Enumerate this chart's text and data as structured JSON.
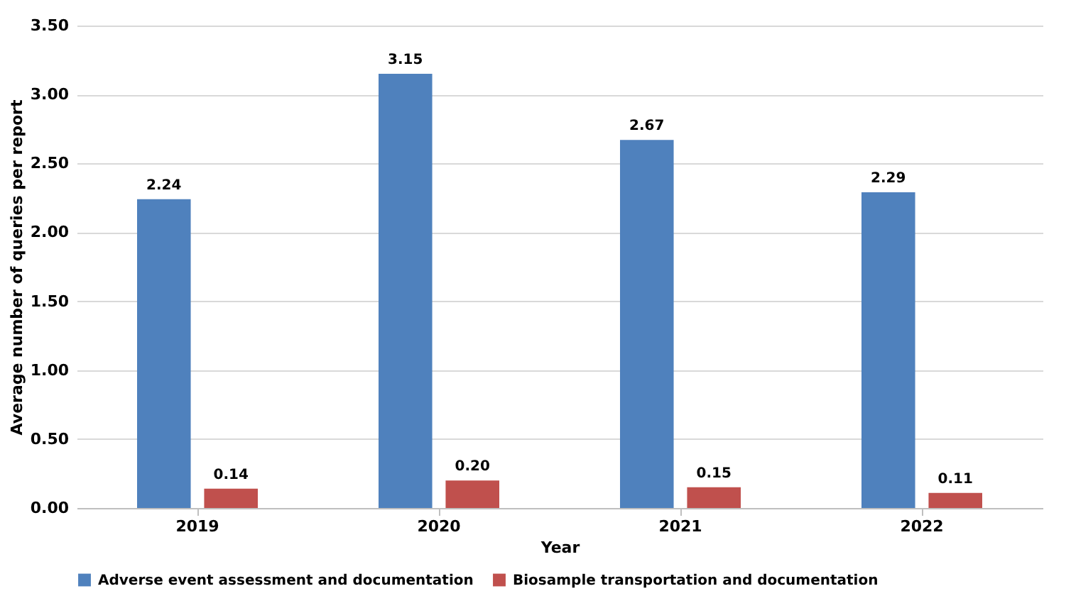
{
  "chart_data": {
    "type": "bar",
    "xlabel": "Year",
    "ylabel": "Average number of queries per report",
    "categories": [
      "2019",
      "2020",
      "2021",
      "2022"
    ],
    "series": [
      {
        "name": "Adverse event assessment and documentation",
        "color": "#4f81bd",
        "values": [
          2.24,
          3.15,
          2.67,
          2.29
        ],
        "value_labels": [
          "2.24",
          "3.15",
          "2.67",
          "2.29"
        ]
      },
      {
        "name": "Biosample transportation and documentation",
        "color": "#c0504d",
        "values": [
          0.14,
          0.2,
          0.15,
          0.11
        ],
        "value_labels": [
          "0.14",
          "0.20",
          "0.15",
          "0.11"
        ]
      }
    ],
    "ylim": [
      0,
      3.5
    ],
    "yticks": [
      {
        "value": 0,
        "label": "0.00"
      },
      {
        "value": 0.5,
        "label": "0.50"
      },
      {
        "value": 1,
        "label": "1.00"
      },
      {
        "value": 1.5,
        "label": "1.50"
      },
      {
        "value": 2,
        "label": "2.00"
      },
      {
        "value": 2.5,
        "label": "2.50"
      },
      {
        "value": 3,
        "label": "3.00"
      },
      {
        "value": 3.5,
        "label": "3.50"
      }
    ],
    "grid": "y",
    "legend": "bottom"
  }
}
